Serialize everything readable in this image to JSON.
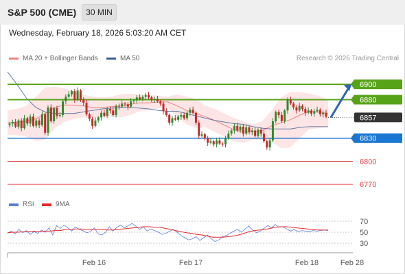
{
  "header": {
    "title": "S&P 500 (CME)",
    "timeframe": "30 MIN"
  },
  "subtitle": "Wednesday, February 18, 2026 5:03:20 AM CET",
  "legend": {
    "ma20_label": "MA 20 + Bollinger Bands",
    "ma20_color": "#f08080",
    "ma50_label": "MA 50",
    "ma50_color": "#3a5d95"
  },
  "copyright": "Research © 2026 Trading Central",
  "indicator_legend": {
    "rsi_label": "RSI",
    "rsi_color": "#5a7ed6",
    "ma9_label": "9MA",
    "ma9_color": "#e8262c"
  },
  "chart_data": [
    {
      "type": "candlestick",
      "ylim": [
        6755,
        6925
      ],
      "grid": false,
      "legend_position": "top-left",
      "colors": {
        "up": "#2e8b2e",
        "down": "#c62828",
        "bollinger_fill": "#fbd3d3",
        "current": "#333333"
      },
      "candles": [
        6849,
        6851,
        6845,
        6853,
        6843,
        6856,
        6849,
        6858,
        6846,
        6853,
        6847,
        6861,
        6837,
        6870,
        6852,
        6869,
        6859,
        6860,
        6878,
        6884,
        6887,
        6891,
        6880,
        6892,
        6880,
        6876,
        6861,
        6855,
        6846,
        6853,
        6857,
        6863,
        6859,
        6868,
        6866,
        6860,
        6872,
        6871,
        6875,
        6874,
        6871,
        6878,
        6879,
        6883,
        6881,
        6884,
        6886,
        6883,
        6880,
        6881,
        6878,
        6875,
        6865,
        6860,
        6850,
        6856,
        6854,
        6858,
        6860,
        6856,
        6863,
        6867,
        6863,
        6850,
        6833,
        6835,
        6830,
        6824,
        6826,
        6822,
        6827,
        6823,
        6822,
        6830,
        6836,
        6840,
        6846,
        6840,
        6845,
        6836,
        6844,
        6838,
        6840,
        6833,
        6841,
        6836,
        6826,
        6818,
        6827,
        6852,
        6864,
        6860,
        6852,
        6866,
        6880,
        6875,
        6870,
        6866,
        6872,
        6868,
        6863,
        6866,
        6862,
        6865,
        6867,
        6861,
        6863,
        6858
      ],
      "ma20_bands": {
        "mid": [
          6850,
          6851,
          6852,
          6855,
          6862,
          6870,
          6873,
          6873,
          6872,
          6870,
          6870,
          6871,
          6872,
          6874,
          6876,
          6876,
          6877,
          6877,
          6872,
          6866,
          6862,
          6858,
          6853,
          6847,
          6841,
          6838,
          6838,
          6840,
          6846,
          6850,
          6854,
          6860,
          6865,
          6864,
          6862
        ],
        "upper": [
          6866,
          6868,
          6872,
          6884,
          6896,
          6897,
          6895,
          6891,
          6887,
          6884,
          6883,
          6884,
          6887,
          6888,
          6887,
          6886,
          6885,
          6884,
          6887,
          6884,
          6881,
          6872,
          6868,
          6862,
          6856,
          6852,
          6848,
          6852,
          6866,
          6883,
          6890,
          6890,
          6888,
          6885,
          6880
        ],
        "lower": [
          6834,
          6834,
          6832,
          6826,
          6828,
          6843,
          6851,
          6855,
          6857,
          6856,
          6857,
          6858,
          6857,
          6860,
          6865,
          6866,
          6869,
          6870,
          6857,
          6848,
          6843,
          6844,
          6838,
          6832,
          6826,
          6824,
          6828,
          6828,
          6826,
          6817,
          6818,
          6830,
          6842,
          6843,
          6844
        ]
      },
      "ma50": [
        6916,
        6900,
        6882,
        6870,
        6864,
        6862,
        6862,
        6862,
        6864,
        6866,
        6868,
        6869,
        6870,
        6870,
        6869,
        6868,
        6866,
        6865,
        6865,
        6862,
        6859,
        6856,
        6853,
        6851,
        6849,
        6848,
        6845,
        6843,
        6842,
        6842,
        6842,
        6844,
        6845,
        6845,
        6845
      ],
      "levels": [
        {
          "value": 6900,
          "label": "6900",
          "color": "#57a317"
        },
        {
          "value": 6880,
          "label": "6880",
          "color": "#57a317"
        },
        {
          "value": 6857,
          "label": "6857",
          "color": "#333333"
        },
        {
          "value": 6830,
          "label": "6830",
          "color": "#1976d2"
        },
        {
          "value": 6800,
          "label": "6800",
          "color": "#e8474a"
        },
        {
          "value": 6770,
          "label": "6770",
          "color": "#e8474a"
        }
      ],
      "forecast": {
        "from": 6857,
        "to": 6900,
        "color": "#2f64b0"
      },
      "x_ticks": [
        "Feb 16",
        "Feb 17",
        "Feb 18",
        "Feb 28"
      ]
    },
    {
      "type": "line",
      "title": "RSI",
      "ylim": [
        20,
        80
      ],
      "y_ticks": [
        30,
        50,
        70
      ],
      "series": [
        {
          "name": "RSI",
          "color": "#5a7ed6",
          "values": [
            48,
            52,
            47,
            55,
            49,
            53,
            46,
            51,
            48,
            54,
            50,
            58,
            45,
            62,
            57,
            63,
            58,
            52,
            60,
            55,
            53,
            49,
            51,
            58,
            47,
            45,
            50,
            60,
            52,
            59,
            63,
            58,
            62,
            66,
            61,
            55,
            60,
            52,
            56,
            53,
            50,
            46,
            48,
            52,
            55,
            50,
            44,
            40,
            36,
            38,
            42,
            35,
            40,
            45,
            38,
            33,
            36,
            42,
            44,
            48,
            52,
            55,
            50,
            56,
            61,
            54,
            49,
            52,
            57,
            62,
            58,
            64,
            59,
            60,
            56,
            52,
            55,
            51,
            53,
            52,
            51,
            53,
            52,
            53,
            54,
            53
          ]
        },
        {
          "name": "9MA",
          "color": "#e8262c",
          "values": [
            49,
            50,
            50,
            51,
            51,
            52,
            51,
            52,
            52,
            53,
            53,
            55,
            55,
            56,
            56,
            55,
            55,
            55,
            55,
            54,
            54,
            55,
            56,
            57,
            58,
            59,
            60,
            60,
            59,
            59,
            57,
            55,
            53,
            51,
            49,
            48,
            46,
            45,
            43,
            41,
            41,
            41,
            42,
            43,
            45,
            48,
            51,
            53,
            54,
            55,
            57,
            59,
            60,
            60,
            59,
            58,
            57,
            56,
            55,
            54,
            54,
            54
          ]
        }
      ]
    }
  ]
}
